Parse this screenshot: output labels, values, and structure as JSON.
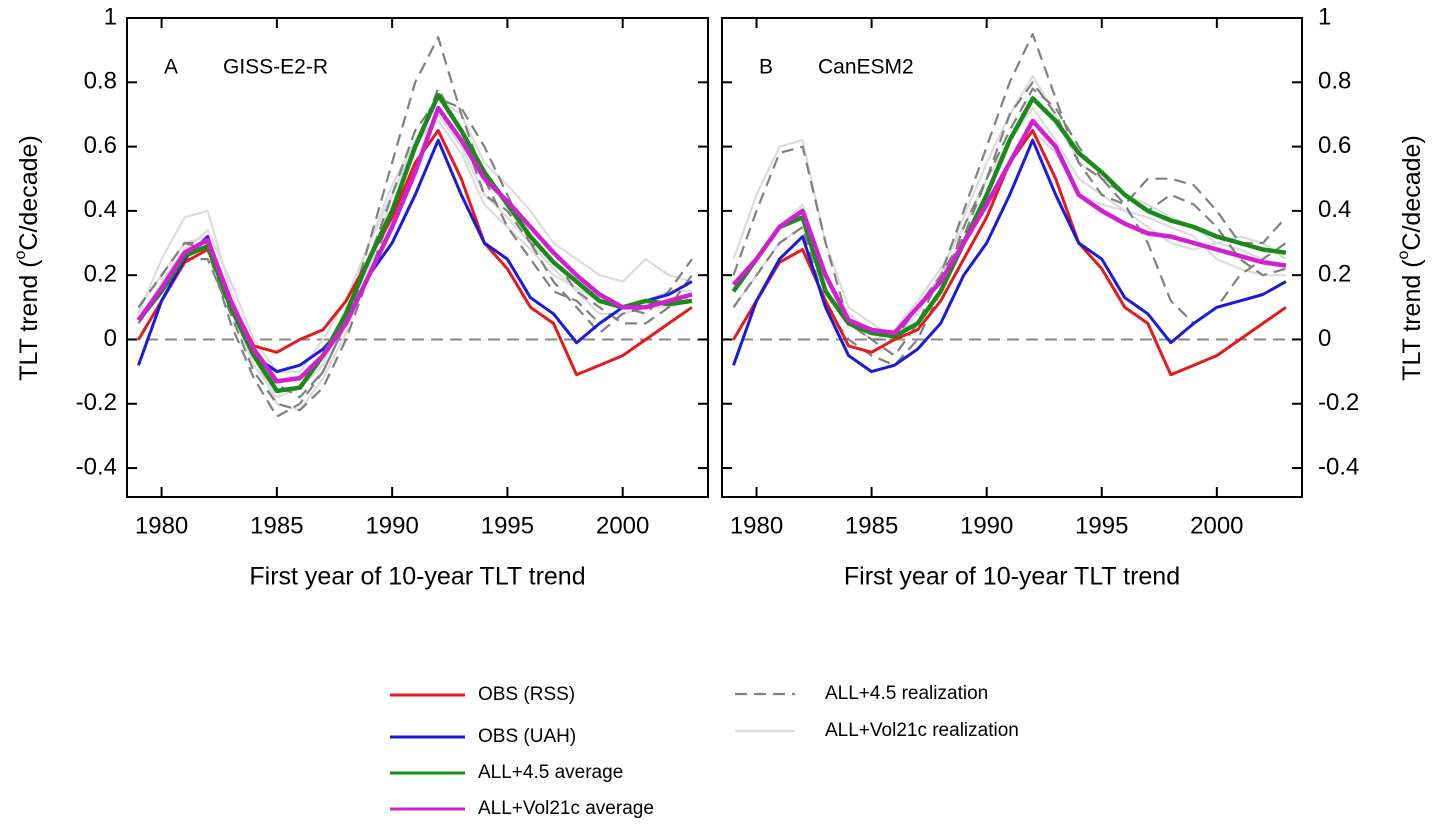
{
  "chart_data": [
    {
      "type": "line",
      "panel": "A",
      "title": "GISS-E2-R",
      "xlabel": "First year of 10-year TLT trend",
      "ylabel": [
        "TLT trend (",
        "o",
        "C/decade)"
      ],
      "yaxis_side": "left",
      "xlim": [
        1978.5,
        2003.7
      ],
      "ylim": [
        -0.49,
        1
      ],
      "xticks": [
        1980,
        1985,
        1990,
        1995,
        2000
      ],
      "yticks": [
        -0.4,
        -0.2,
        0,
        0.2,
        0.4,
        0.6,
        0.8,
        1
      ],
      "hline": 0,
      "x": [
        1979,
        1980,
        1981,
        1982,
        1983,
        1984,
        1985,
        1986,
        1987,
        1988,
        1989,
        1990,
        1991,
        1992,
        1993,
        1994,
        1995,
        1996,
        1997,
        1998,
        1999,
        2000,
        2001,
        2002,
        2003
      ],
      "series": [
        {
          "color": "#dcdcdc",
          "style": "solid",
          "values": [
            0.08,
            0.25,
            0.38,
            0.4,
            0.15,
            -0.05,
            -0.2,
            -0.22,
            -0.12,
            0.02,
            0.22,
            0.45,
            0.62,
            0.75,
            0.7,
            0.55,
            0.48,
            0.4,
            0.3,
            0.25,
            0.2,
            0.18,
            0.25,
            0.2,
            0.18
          ]
        },
        {
          "color": "#dcdcdc",
          "style": "solid",
          "values": [
            0.1,
            0.2,
            0.3,
            0.32,
            0.1,
            -0.08,
            -0.18,
            -0.15,
            -0.08,
            0.1,
            0.3,
            0.45,
            0.6,
            0.7,
            0.6,
            0.45,
            0.38,
            0.3,
            0.22,
            0.15,
            0.08,
            0.08,
            0.1,
            0.1,
            0.12
          ]
        },
        {
          "color": "#dcdcdc",
          "style": "solid",
          "values": [
            0.05,
            0.18,
            0.28,
            0.34,
            0.18,
            0.0,
            -0.1,
            -0.1,
            0.0,
            0.12,
            0.3,
            0.48,
            0.62,
            0.68,
            0.58,
            0.42,
            0.35,
            0.28,
            0.2,
            0.16,
            0.12,
            0.1,
            0.12,
            0.15,
            0.15
          ]
        },
        {
          "color": "#808080",
          "style": "dashed",
          "values": [
            0.1,
            0.2,
            0.3,
            0.28,
            0.05,
            -0.12,
            -0.24,
            -0.2,
            -0.1,
            0.05,
            0.3,
            0.55,
            0.8,
            0.94,
            0.7,
            0.5,
            0.35,
            0.25,
            0.15,
            0.12,
            0.05,
            0.1,
            0.08,
            0.15,
            0.25
          ]
        },
        {
          "color": "#808080",
          "style": "dashed",
          "values": [
            0.05,
            0.15,
            0.25,
            0.25,
            0.08,
            -0.1,
            -0.2,
            -0.22,
            -0.15,
            0.0,
            0.2,
            0.4,
            0.6,
            0.78,
            0.65,
            0.45,
            0.4,
            0.3,
            0.25,
            0.15,
            0.1,
            0.05,
            0.05,
            0.1,
            0.2
          ]
        },
        {
          "color": "#808080",
          "style": "dashed",
          "values": [
            0.1,
            0.2,
            0.3,
            0.3,
            0.12,
            -0.05,
            -0.14,
            -0.18,
            -0.1,
            0.05,
            0.25,
            0.45,
            0.65,
            0.75,
            0.72,
            0.6,
            0.45,
            0.3,
            0.18,
            0.1,
            0.02,
            0.08,
            0.1,
            0.12,
            0.12
          ]
        },
        {
          "color": "#e41a1c",
          "style": "solid",
          "values": [
            0.0,
            0.12,
            0.24,
            0.28,
            0.12,
            -0.02,
            -0.04,
            0.0,
            0.03,
            0.12,
            0.25,
            0.38,
            0.55,
            0.65,
            0.5,
            0.3,
            0.22,
            0.1,
            0.05,
            -0.11,
            -0.08,
            -0.05,
            0.0,
            0.05,
            0.1
          ]
        },
        {
          "color": "#1a1adc",
          "style": "solid",
          "values": [
            -0.08,
            0.12,
            0.25,
            0.32,
            0.1,
            -0.05,
            -0.1,
            -0.08,
            -0.03,
            0.05,
            0.2,
            0.3,
            0.45,
            0.62,
            0.45,
            0.3,
            0.25,
            0.13,
            0.08,
            -0.01,
            0.05,
            0.1,
            0.12,
            0.14,
            0.18
          ]
        },
        {
          "color": "#1a8a1a",
          "style": "solid",
          "values": [
            0.06,
            0.15,
            0.26,
            0.29,
            0.1,
            -0.05,
            -0.16,
            -0.15,
            -0.05,
            0.08,
            0.25,
            0.4,
            0.6,
            0.76,
            0.65,
            0.52,
            0.42,
            0.32,
            0.24,
            0.18,
            0.12,
            0.1,
            0.12,
            0.11,
            0.12
          ]
        },
        {
          "color": "#d020d0",
          "style": "solid",
          "values": [
            0.06,
            0.16,
            0.27,
            0.31,
            0.12,
            -0.03,
            -0.13,
            -0.12,
            -0.05,
            0.05,
            0.2,
            0.35,
            0.52,
            0.72,
            0.62,
            0.5,
            0.43,
            0.35,
            0.27,
            0.2,
            0.14,
            0.1,
            0.1,
            0.12,
            0.14
          ]
        }
      ]
    },
    {
      "type": "line",
      "panel": "B",
      "title": "CanESM2",
      "xlabel": "First year of 10-year TLT trend",
      "ylabel": [
        "TLT trend (",
        "o",
        "C/decade)"
      ],
      "yaxis_side": "right",
      "xlim": [
        1978.5,
        2003.7
      ],
      "ylim": [
        -0.49,
        1
      ],
      "xticks": [
        1980,
        1985,
        1990,
        1995,
        2000
      ],
      "yticks": [
        -0.4,
        -0.2,
        0,
        0.2,
        0.4,
        0.6,
        0.8,
        1
      ],
      "hline": 0,
      "x": [
        1979,
        1980,
        1981,
        1982,
        1983,
        1984,
        1985,
        1986,
        1987,
        1988,
        1989,
        1990,
        1991,
        1992,
        1993,
        1994,
        1995,
        1996,
        1997,
        1998,
        1999,
        2000,
        2001,
        2002,
        2003
      ],
      "series": [
        {
          "color": "#dcdcdc",
          "style": "solid",
          "values": [
            0.25,
            0.45,
            0.6,
            0.62,
            0.3,
            0.1,
            0.05,
            0.0,
            0.08,
            0.2,
            0.38,
            0.55,
            0.7,
            0.82,
            0.7,
            0.55,
            0.5,
            0.45,
            0.42,
            0.38,
            0.35,
            0.3,
            0.28,
            0.25,
            0.22
          ]
        },
        {
          "color": "#dcdcdc",
          "style": "solid",
          "values": [
            0.1,
            0.2,
            0.3,
            0.35,
            0.15,
            0.05,
            0.0,
            0.02,
            0.1,
            0.2,
            0.3,
            0.42,
            0.55,
            0.65,
            0.58,
            0.45,
            0.42,
            0.4,
            0.38,
            0.35,
            0.32,
            0.25,
            0.22,
            0.2,
            0.2
          ]
        },
        {
          "color": "#dcdcdc",
          "style": "solid",
          "values": [
            0.15,
            0.25,
            0.35,
            0.42,
            0.2,
            0.08,
            0.02,
            0.03,
            0.12,
            0.22,
            0.35,
            0.5,
            0.62,
            0.72,
            0.62,
            0.5,
            0.45,
            0.4,
            0.35,
            0.3,
            0.28,
            0.3,
            0.32,
            0.3,
            0.25
          ]
        },
        {
          "color": "#808080",
          "style": "dashed",
          "values": [
            0.2,
            0.4,
            0.58,
            0.6,
            0.3,
            0.05,
            0.0,
            -0.05,
            0.05,
            0.2,
            0.4,
            0.6,
            0.8,
            0.95,
            0.75,
            0.55,
            0.45,
            0.42,
            0.5,
            0.5,
            0.48,
            0.4,
            0.3,
            0.3,
            0.38
          ]
        },
        {
          "color": "#808080",
          "style": "dashed",
          "values": [
            0.1,
            0.2,
            0.3,
            0.35,
            0.1,
            0.0,
            -0.05,
            -0.08,
            0.0,
            0.15,
            0.35,
            0.5,
            0.7,
            0.8,
            0.7,
            0.55,
            0.5,
            0.42,
            0.3,
            0.12,
            0.05,
            0.1,
            0.2,
            0.25,
            0.3
          ]
        },
        {
          "color": "#808080",
          "style": "dashed",
          "values": [
            0.15,
            0.25,
            0.35,
            0.38,
            0.2,
            0.05,
            0.0,
            0.0,
            0.1,
            0.2,
            0.32,
            0.5,
            0.65,
            0.78,
            0.72,
            0.6,
            0.5,
            0.45,
            0.4,
            0.45,
            0.42,
            0.35,
            0.25,
            0.2,
            0.22
          ]
        },
        {
          "color": "#e41a1c",
          "style": "solid",
          "values": [
            0.0,
            0.12,
            0.24,
            0.28,
            0.12,
            -0.02,
            -0.04,
            0.0,
            0.03,
            0.12,
            0.25,
            0.38,
            0.55,
            0.65,
            0.5,
            0.3,
            0.22,
            0.1,
            0.05,
            -0.11,
            -0.08,
            -0.05,
            0.0,
            0.05,
            0.1
          ]
        },
        {
          "color": "#1a1adc",
          "style": "solid",
          "values": [
            -0.08,
            0.12,
            0.25,
            0.32,
            0.1,
            -0.05,
            -0.1,
            -0.08,
            -0.03,
            0.05,
            0.2,
            0.3,
            0.45,
            0.62,
            0.45,
            0.3,
            0.25,
            0.13,
            0.08,
            -0.01,
            0.05,
            0.1,
            0.12,
            0.14,
            0.18
          ]
        },
        {
          "color": "#1a8a1a",
          "style": "solid",
          "values": [
            0.15,
            0.25,
            0.35,
            0.38,
            0.15,
            0.05,
            0.02,
            0.01,
            0.05,
            0.15,
            0.3,
            0.45,
            0.62,
            0.75,
            0.68,
            0.58,
            0.52,
            0.45,
            0.4,
            0.37,
            0.35,
            0.32,
            0.3,
            0.28,
            0.27
          ]
        },
        {
          "color": "#d020d0",
          "style": "solid",
          "values": [
            0.17,
            0.25,
            0.35,
            0.4,
            0.2,
            0.06,
            0.03,
            0.02,
            0.1,
            0.18,
            0.3,
            0.42,
            0.55,
            0.68,
            0.6,
            0.45,
            0.4,
            0.36,
            0.33,
            0.32,
            0.3,
            0.28,
            0.26,
            0.24,
            0.23
          ]
        }
      ]
    }
  ],
  "legend": [
    {
      "name": "OBS (RSS)",
      "color": "#e41a1c",
      "style": "solid"
    },
    {
      "name": "OBS (UAH)",
      "color": "#1a1adc",
      "style": "solid"
    },
    {
      "name": "ALL+4.5 average",
      "color": "#1a8a1a",
      "style": "solid"
    },
    {
      "name": "ALL+Vol21c average",
      "color": "#d020d0",
      "style": "solid"
    },
    {
      "name": "ALL+4.5 realization",
      "color": "#808080",
      "style": "dashed"
    },
    {
      "name": "ALL+Vol21c realization",
      "color": "#dcdcdc",
      "style": "solid"
    }
  ]
}
